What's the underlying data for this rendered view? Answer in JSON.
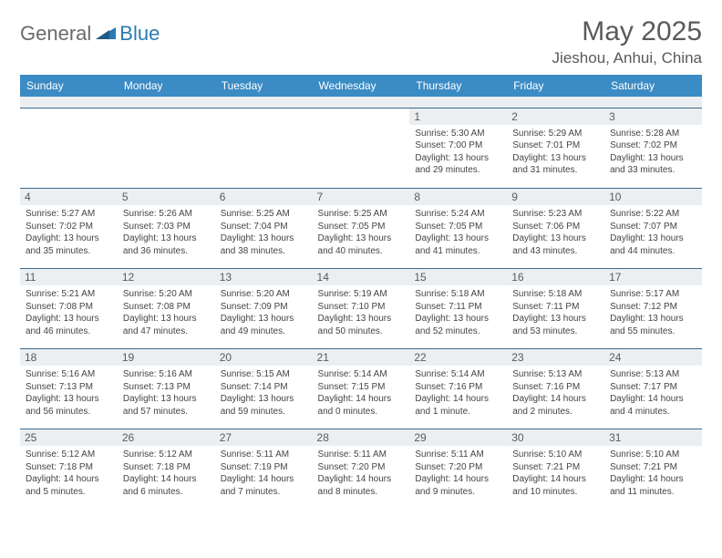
{
  "brand": {
    "general": "General",
    "blue": "Blue"
  },
  "title": "May 2025",
  "location": "Jieshou, Anhui, China",
  "colors": {
    "header_bg": "#3b8bc4",
    "header_text": "#ffffff",
    "daynum_bg": "#eceff1",
    "border": "#3b6a8f",
    "title_color": "#5a5a5a",
    "logo_gray": "#6a6a6a",
    "logo_blue": "#2a7ab0"
  },
  "day_headers": [
    "Sunday",
    "Monday",
    "Tuesday",
    "Wednesday",
    "Thursday",
    "Friday",
    "Saturday"
  ],
  "weeks": [
    [
      {
        "num": "",
        "sunrise": "",
        "sunset": "",
        "daylight": ""
      },
      {
        "num": "",
        "sunrise": "",
        "sunset": "",
        "daylight": ""
      },
      {
        "num": "",
        "sunrise": "",
        "sunset": "",
        "daylight": ""
      },
      {
        "num": "",
        "sunrise": "",
        "sunset": "",
        "daylight": ""
      },
      {
        "num": "1",
        "sunrise": "Sunrise: 5:30 AM",
        "sunset": "Sunset: 7:00 PM",
        "daylight": "Daylight: 13 hours and 29 minutes."
      },
      {
        "num": "2",
        "sunrise": "Sunrise: 5:29 AM",
        "sunset": "Sunset: 7:01 PM",
        "daylight": "Daylight: 13 hours and 31 minutes."
      },
      {
        "num": "3",
        "sunrise": "Sunrise: 5:28 AM",
        "sunset": "Sunset: 7:02 PM",
        "daylight": "Daylight: 13 hours and 33 minutes."
      }
    ],
    [
      {
        "num": "4",
        "sunrise": "Sunrise: 5:27 AM",
        "sunset": "Sunset: 7:02 PM",
        "daylight": "Daylight: 13 hours and 35 minutes."
      },
      {
        "num": "5",
        "sunrise": "Sunrise: 5:26 AM",
        "sunset": "Sunset: 7:03 PM",
        "daylight": "Daylight: 13 hours and 36 minutes."
      },
      {
        "num": "6",
        "sunrise": "Sunrise: 5:25 AM",
        "sunset": "Sunset: 7:04 PM",
        "daylight": "Daylight: 13 hours and 38 minutes."
      },
      {
        "num": "7",
        "sunrise": "Sunrise: 5:25 AM",
        "sunset": "Sunset: 7:05 PM",
        "daylight": "Daylight: 13 hours and 40 minutes."
      },
      {
        "num": "8",
        "sunrise": "Sunrise: 5:24 AM",
        "sunset": "Sunset: 7:05 PM",
        "daylight": "Daylight: 13 hours and 41 minutes."
      },
      {
        "num": "9",
        "sunrise": "Sunrise: 5:23 AM",
        "sunset": "Sunset: 7:06 PM",
        "daylight": "Daylight: 13 hours and 43 minutes."
      },
      {
        "num": "10",
        "sunrise": "Sunrise: 5:22 AM",
        "sunset": "Sunset: 7:07 PM",
        "daylight": "Daylight: 13 hours and 44 minutes."
      }
    ],
    [
      {
        "num": "11",
        "sunrise": "Sunrise: 5:21 AM",
        "sunset": "Sunset: 7:08 PM",
        "daylight": "Daylight: 13 hours and 46 minutes."
      },
      {
        "num": "12",
        "sunrise": "Sunrise: 5:20 AM",
        "sunset": "Sunset: 7:08 PM",
        "daylight": "Daylight: 13 hours and 47 minutes."
      },
      {
        "num": "13",
        "sunrise": "Sunrise: 5:20 AM",
        "sunset": "Sunset: 7:09 PM",
        "daylight": "Daylight: 13 hours and 49 minutes."
      },
      {
        "num": "14",
        "sunrise": "Sunrise: 5:19 AM",
        "sunset": "Sunset: 7:10 PM",
        "daylight": "Daylight: 13 hours and 50 minutes."
      },
      {
        "num": "15",
        "sunrise": "Sunrise: 5:18 AM",
        "sunset": "Sunset: 7:11 PM",
        "daylight": "Daylight: 13 hours and 52 minutes."
      },
      {
        "num": "16",
        "sunrise": "Sunrise: 5:18 AM",
        "sunset": "Sunset: 7:11 PM",
        "daylight": "Daylight: 13 hours and 53 minutes."
      },
      {
        "num": "17",
        "sunrise": "Sunrise: 5:17 AM",
        "sunset": "Sunset: 7:12 PM",
        "daylight": "Daylight: 13 hours and 55 minutes."
      }
    ],
    [
      {
        "num": "18",
        "sunrise": "Sunrise: 5:16 AM",
        "sunset": "Sunset: 7:13 PM",
        "daylight": "Daylight: 13 hours and 56 minutes."
      },
      {
        "num": "19",
        "sunrise": "Sunrise: 5:16 AM",
        "sunset": "Sunset: 7:13 PM",
        "daylight": "Daylight: 13 hours and 57 minutes."
      },
      {
        "num": "20",
        "sunrise": "Sunrise: 5:15 AM",
        "sunset": "Sunset: 7:14 PM",
        "daylight": "Daylight: 13 hours and 59 minutes."
      },
      {
        "num": "21",
        "sunrise": "Sunrise: 5:14 AM",
        "sunset": "Sunset: 7:15 PM",
        "daylight": "Daylight: 14 hours and 0 minutes."
      },
      {
        "num": "22",
        "sunrise": "Sunrise: 5:14 AM",
        "sunset": "Sunset: 7:16 PM",
        "daylight": "Daylight: 14 hours and 1 minute."
      },
      {
        "num": "23",
        "sunrise": "Sunrise: 5:13 AM",
        "sunset": "Sunset: 7:16 PM",
        "daylight": "Daylight: 14 hours and 2 minutes."
      },
      {
        "num": "24",
        "sunrise": "Sunrise: 5:13 AM",
        "sunset": "Sunset: 7:17 PM",
        "daylight": "Daylight: 14 hours and 4 minutes."
      }
    ],
    [
      {
        "num": "25",
        "sunrise": "Sunrise: 5:12 AM",
        "sunset": "Sunset: 7:18 PM",
        "daylight": "Daylight: 14 hours and 5 minutes."
      },
      {
        "num": "26",
        "sunrise": "Sunrise: 5:12 AM",
        "sunset": "Sunset: 7:18 PM",
        "daylight": "Daylight: 14 hours and 6 minutes."
      },
      {
        "num": "27",
        "sunrise": "Sunrise: 5:11 AM",
        "sunset": "Sunset: 7:19 PM",
        "daylight": "Daylight: 14 hours and 7 minutes."
      },
      {
        "num": "28",
        "sunrise": "Sunrise: 5:11 AM",
        "sunset": "Sunset: 7:20 PM",
        "daylight": "Daylight: 14 hours and 8 minutes."
      },
      {
        "num": "29",
        "sunrise": "Sunrise: 5:11 AM",
        "sunset": "Sunset: 7:20 PM",
        "daylight": "Daylight: 14 hours and 9 minutes."
      },
      {
        "num": "30",
        "sunrise": "Sunrise: 5:10 AM",
        "sunset": "Sunset: 7:21 PM",
        "daylight": "Daylight: 14 hours and 10 minutes."
      },
      {
        "num": "31",
        "sunrise": "Sunrise: 5:10 AM",
        "sunset": "Sunset: 7:21 PM",
        "daylight": "Daylight: 14 hours and 11 minutes."
      }
    ]
  ]
}
